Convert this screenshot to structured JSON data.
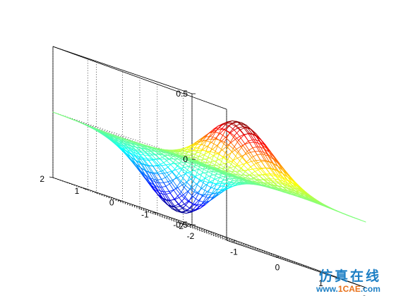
{
  "chart_data": {
    "type": "surface-mesh",
    "function": "z = x * exp(-x^2 - y^2)",
    "title": "",
    "xlabel": "",
    "ylabel": "",
    "zlabel": "",
    "xlim": [
      -2,
      2
    ],
    "ylim": [
      -2,
      2
    ],
    "zlim": [
      -0.5,
      0.5
    ],
    "grid": true,
    "box": true,
    "colormap": "jet",
    "x_ticks": [
      "-2",
      "-1",
      "0",
      "1",
      "2"
    ],
    "y_ticks": [
      "-2",
      "-1",
      "0",
      "1",
      "2"
    ],
    "z_ticks": [
      "-0.5",
      "0",
      "0.5"
    ],
    "mesh_steps": 32,
    "peak": {
      "x": 0.71,
      "y": 0,
      "z": 0.43
    },
    "trough": {
      "x": -0.71,
      "y": 0,
      "z": -0.43
    }
  },
  "watermark": {
    "text_cn": "仿真在线",
    "url_prefix": "www.",
    "url_brand": "1CAE",
    "url_suffix": ".com",
    "color": "#1d7fc4",
    "accent_color": "#e8701a"
  }
}
